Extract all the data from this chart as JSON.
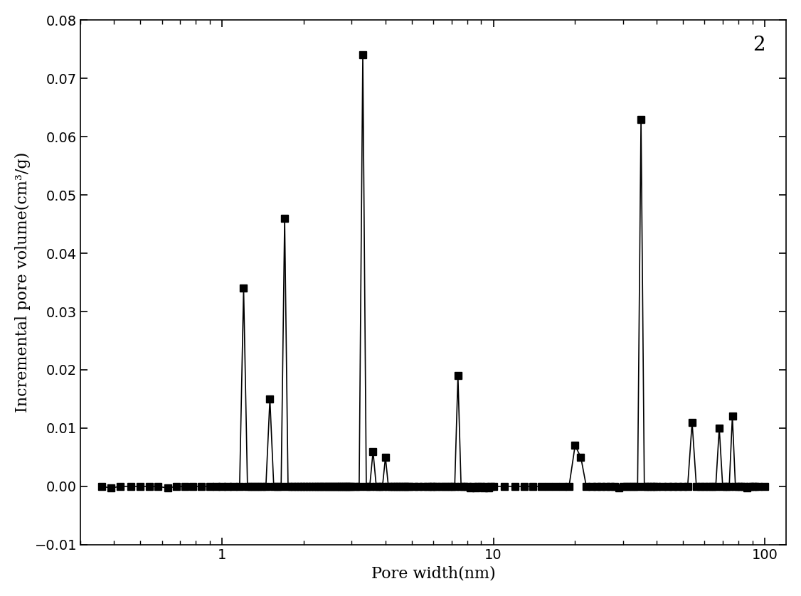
{
  "x_data": [
    0.36,
    0.39,
    0.42,
    0.46,
    0.5,
    0.54,
    0.58,
    0.63,
    0.68,
    0.73,
    0.78,
    0.84,
    0.9,
    0.95,
    1.0,
    1.05,
    1.1,
    1.16,
    1.2,
    1.24,
    1.28,
    1.32,
    1.36,
    1.4,
    1.45,
    1.5,
    1.55,
    1.6,
    1.65,
    1.7,
    1.75,
    1.8,
    1.85,
    1.9,
    1.95,
    2.0,
    2.05,
    2.1,
    2.15,
    2.2,
    2.25,
    2.3,
    2.35,
    2.4,
    2.45,
    2.5,
    2.55,
    2.6,
    2.65,
    2.7,
    2.75,
    2.8,
    2.85,
    2.9,
    2.95,
    3.0,
    3.1,
    3.2,
    3.3,
    3.4,
    3.5,
    3.6,
    3.7,
    3.8,
    3.9,
    4.0,
    4.1,
    4.2,
    4.3,
    4.4,
    4.5,
    4.6,
    4.7,
    4.8,
    4.9,
    5.1,
    5.3,
    5.5,
    5.7,
    5.9,
    6.0,
    6.2,
    6.4,
    6.6,
    6.8,
    7.0,
    7.2,
    7.4,
    7.6,
    7.8,
    8.0,
    8.2,
    8.4,
    8.6,
    8.8,
    9.0,
    9.2,
    9.4,
    9.6,
    9.8,
    10.0,
    11.0,
    12.0,
    13.0,
    14.0,
    15.0,
    16.0,
    17.0,
    18.0,
    19.0,
    20.0,
    21.0,
    22.0,
    23.0,
    24.0,
    25.0,
    26.0,
    27.0,
    28.0,
    29.0,
    30.0,
    31.0,
    32.0,
    33.0,
    34.0,
    35.0,
    36.0,
    37.0,
    38.0,
    39.0,
    40.0,
    42.0,
    44.0,
    46.0,
    48.0,
    50.0,
    52.0,
    54.0,
    56.0,
    58.0,
    60.0,
    62.0,
    64.0,
    66.0,
    68.0,
    70.0,
    72.0,
    74.0,
    76.0,
    78.0,
    80.0,
    82.0,
    84.0,
    86.0,
    88.0,
    90.0,
    92.0,
    95.0,
    100.0
  ],
  "y_data": [
    0.0,
    -0.0003,
    0.0,
    0.0,
    0.0,
    0.0,
    0.0,
    -0.0003,
    0.0,
    0.0,
    0.0,
    0.0,
    0.0,
    0.0,
    0.0,
    0.0,
    0.0,
    0.0,
    0.034,
    0.0,
    0.0,
    0.0,
    0.0,
    0.0,
    0.0,
    0.015,
    0.0,
    0.0,
    0.0,
    0.046,
    0.0,
    0.0,
    0.0,
    0.0,
    0.0,
    0.0,
    0.0,
    0.0,
    0.0,
    0.0,
    0.0,
    0.0,
    0.0,
    0.0,
    0.0,
    0.0,
    0.0,
    0.0,
    0.0,
    0.0,
    0.0,
    0.0,
    0.0,
    0.0,
    0.0,
    0.0,
    0.0,
    0.0,
    0.074,
    0.0,
    0.0,
    0.006,
    0.0,
    0.0,
    0.0,
    0.005,
    0.0,
    0.0,
    0.0,
    0.0,
    0.0,
    0.0,
    0.0,
    0.0,
    0.0,
    0.0,
    0.0,
    0.0,
    0.0,
    0.0,
    0.0,
    0.0,
    0.0,
    0.0,
    0.0,
    0.0,
    0.0,
    0.019,
    0.0,
    0.0,
    0.0,
    -0.0003,
    0.0,
    -0.0003,
    0.0,
    0.0,
    -0.0003,
    0.0,
    -0.0003,
    0.0,
    0.0,
    0.0,
    0.0,
    0.0,
    0.0,
    0.0,
    0.0,
    0.0,
    0.0,
    0.0,
    0.007,
    0.005,
    0.0,
    0.0,
    0.0,
    0.0,
    0.0,
    0.0,
    0.0,
    -0.0003,
    0.0,
    0.0,
    0.0,
    0.0,
    0.0,
    0.063,
    0.0,
    0.0,
    0.0,
    0.0,
    0.0,
    0.0,
    0.0,
    0.0,
    0.0,
    0.0,
    0.0,
    0.011,
    0.0,
    0.0,
    0.0,
    0.0,
    0.0,
    0.0,
    0.01,
    0.0,
    0.0,
    0.0,
    0.012,
    0.0,
    0.0,
    0.0,
    0.0,
    -0.0003,
    0.0,
    0.0,
    0.0,
    0.0,
    0.0
  ],
  "xlabel": "Pore width(nm)",
  "ylabel": "Incremental pore volume(cm³/g)",
  "label_number": "2",
  "xlim": [
    0.3,
    120
  ],
  "ylim": [
    -0.01,
    0.08
  ],
  "yticks": [
    -0.01,
    0.0,
    0.01,
    0.02,
    0.03,
    0.04,
    0.05,
    0.06,
    0.07,
    0.08
  ],
  "line_color": "#000000",
  "marker_color": "#000000",
  "marker_style": "s",
  "marker_size": 7,
  "line_width": 1.2,
  "label_fontsize": 20,
  "axis_label_fontsize": 16,
  "tick_fontsize": 14
}
